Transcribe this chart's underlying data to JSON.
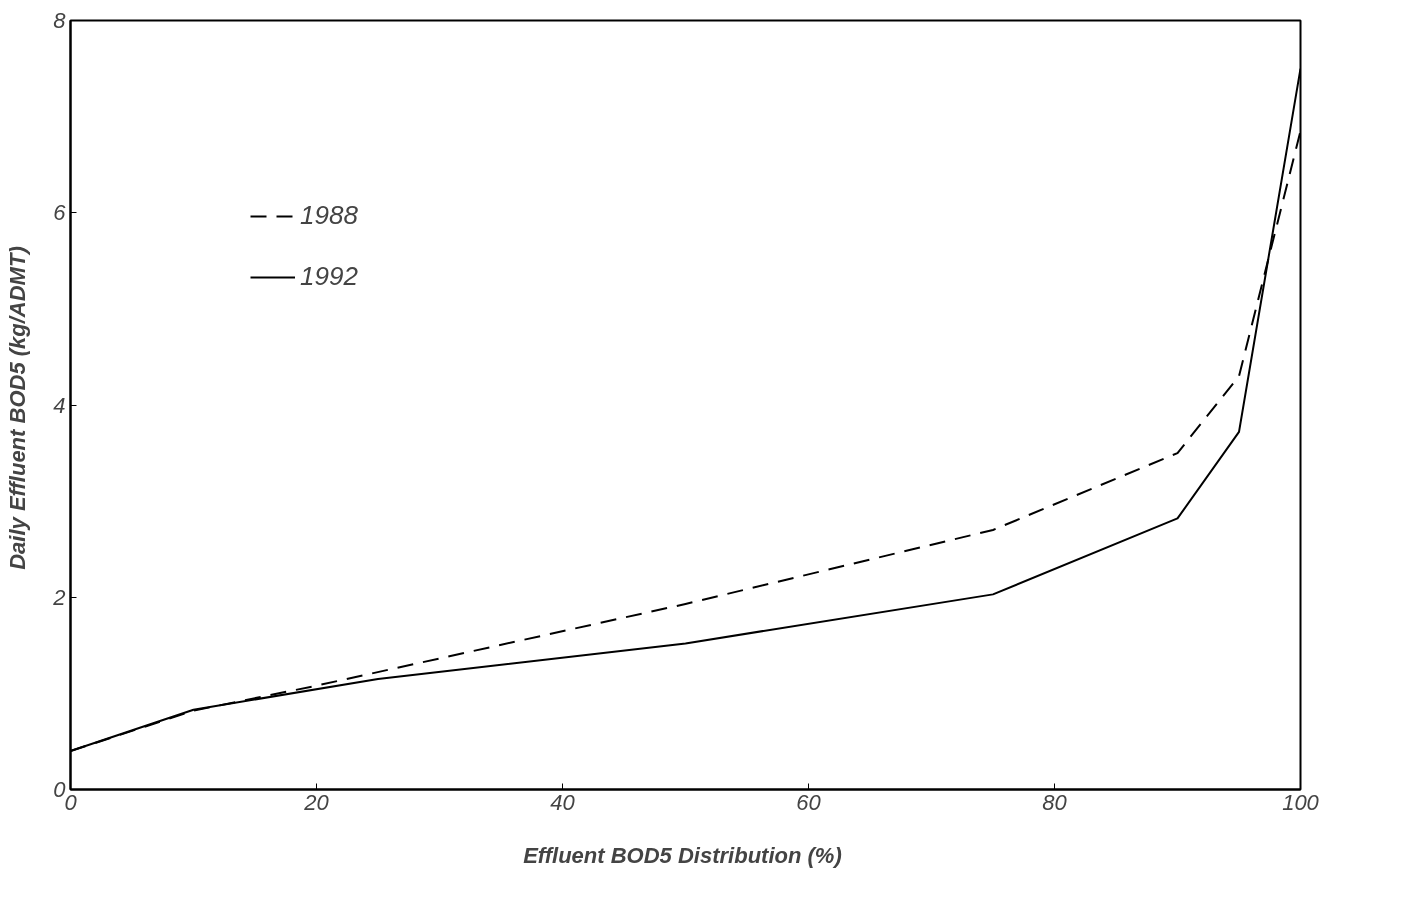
{
  "chart_data": {
    "type": "line",
    "xlabel": "Effluent BOD5 Distribution  (%)",
    "ylabel": "Daily Effluent BOD5  (kg/ADMT)",
    "xlim": [
      0,
      100
    ],
    "ylim": [
      0,
      8
    ],
    "xticks": [
      0,
      20,
      40,
      60,
      80,
      100
    ],
    "yticks": [
      0,
      2,
      4,
      6,
      8
    ],
    "grid": false,
    "legend": "top left",
    "marker": "none",
    "series": [
      {
        "name": "1988",
        "color": "#000000",
        "line_style": "dashed",
        "x": [
          0,
          10,
          20,
          50,
          75,
          90,
          95,
          100
        ],
        "values": [
          0.4,
          0.82,
          1.08,
          1.93,
          2.7,
          3.5,
          4.3,
          6.85
        ]
      },
      {
        "name": "1992",
        "color": "#000000",
        "line_style": "solid",
        "x": [
          0,
          10,
          25,
          50,
          75,
          90,
          95,
          100
        ],
        "values": [
          0.4,
          0.83,
          1.15,
          1.52,
          2.03,
          2.82,
          3.72,
          7.5
        ]
      }
    ]
  }
}
